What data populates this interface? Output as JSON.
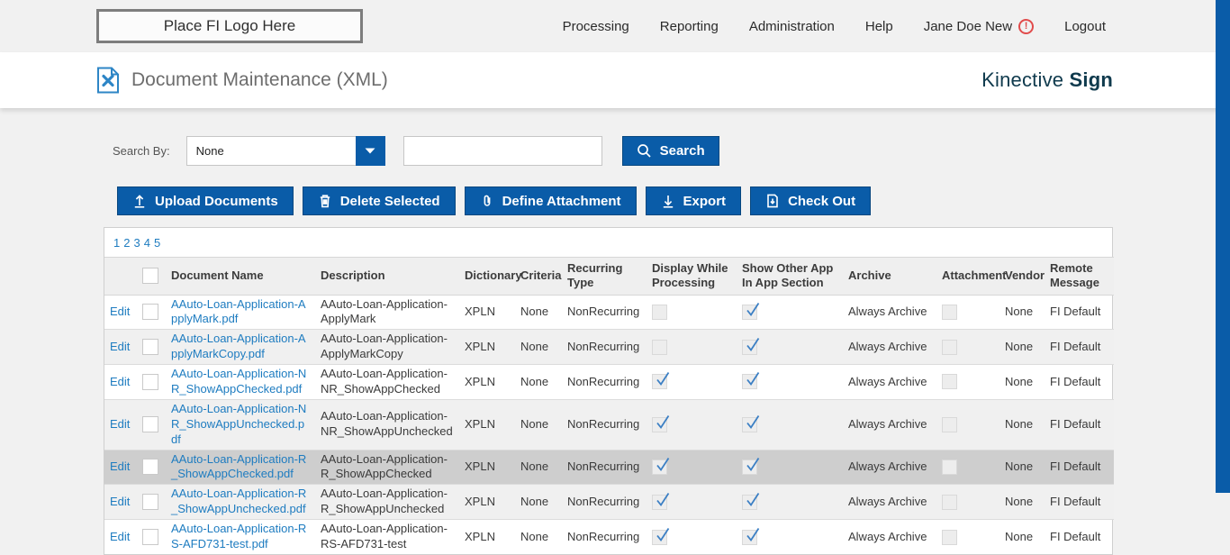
{
  "colors": {
    "accent_blue": "#0a5ca8",
    "link_blue": "#1e7cc0",
    "brand_navy": "#0f3a4d",
    "alert_red": "#e14b4b",
    "highlight_row": "#cecece",
    "alt_row": "#f0f0f0",
    "header_row": "#efefef"
  },
  "navbar": {
    "logo_text": "Place FI Logo Here",
    "items": [
      {
        "label": "Processing",
        "alert": false
      },
      {
        "label": "Reporting",
        "alert": false
      },
      {
        "label": "Administration",
        "alert": false
      },
      {
        "label": "Help",
        "alert": false
      },
      {
        "label": "Jane Doe New",
        "alert": true
      },
      {
        "label": "Logout",
        "alert": false
      }
    ],
    "alert_glyph": "!"
  },
  "page_header": {
    "title": "Document Maintenance (XML)",
    "brand_regular": "Kinective ",
    "brand_bold": "Sign"
  },
  "search": {
    "label": "Search By:",
    "dropdown_value": "None",
    "input_value": "",
    "button_label": "Search"
  },
  "toolbar": {
    "buttons": [
      {
        "label": "Upload Documents",
        "icon": "upload-icon"
      },
      {
        "label": "Delete Selected",
        "icon": "trash-icon"
      },
      {
        "label": "Define Attachment",
        "icon": "paperclip-icon"
      },
      {
        "label": "Export",
        "icon": "export-icon"
      },
      {
        "label": "Check Out",
        "icon": "checkout-icon"
      }
    ]
  },
  "pagination": {
    "pages": [
      "1",
      "2",
      "3",
      "4",
      "5"
    ]
  },
  "table": {
    "edit_label": "Edit",
    "headers": [
      "",
      "",
      "Document Name",
      "Description",
      "Dictionary",
      "Criteria",
      "Recurring Type",
      "Display While Processing",
      "Show Other App In App Section",
      "Archive",
      "Attachment",
      "Vendor",
      "Remote Message"
    ],
    "rows": [
      {
        "name": "AAuto-Loan-Application-ApplyMark.pdf",
        "description": "AAuto-Loan-Application-ApplyMark",
        "dictionary": "XPLN",
        "criteria": "None",
        "recurring_type": "NonRecurring",
        "display_while_processing": false,
        "show_other_app": true,
        "archive": "Always Archive",
        "attachment": false,
        "vendor": "None",
        "remote_message": "FI Default",
        "highlighted": false
      },
      {
        "name": "AAuto-Loan-Application-ApplyMarkCopy.pdf",
        "description": "AAuto-Loan-Application-ApplyMarkCopy",
        "dictionary": "XPLN",
        "criteria": "None",
        "recurring_type": "NonRecurring",
        "display_while_processing": false,
        "show_other_app": true,
        "archive": "Always Archive",
        "attachment": false,
        "vendor": "None",
        "remote_message": "FI Default",
        "highlighted": false
      },
      {
        "name": "AAuto-Loan-Application-NR_ShowAppChecked.pdf",
        "description": "AAuto-Loan-Application-NR_ShowAppChecked",
        "dictionary": "XPLN",
        "criteria": "None",
        "recurring_type": "NonRecurring",
        "display_while_processing": true,
        "show_other_app": true,
        "archive": "Always Archive",
        "attachment": false,
        "vendor": "None",
        "remote_message": "FI Default",
        "highlighted": false
      },
      {
        "name": "AAuto-Loan-Application-NR_ShowAppUnchecked.pdf",
        "description": "AAuto-Loan-Application-NR_ShowAppUnchecked",
        "dictionary": "XPLN",
        "criteria": "None",
        "recurring_type": "NonRecurring",
        "display_while_processing": true,
        "show_other_app": true,
        "archive": "Always Archive",
        "attachment": false,
        "vendor": "None",
        "remote_message": "FI Default",
        "highlighted": false
      },
      {
        "name": "AAuto-Loan-Application-R_ShowAppChecked.pdf",
        "description": "AAuto-Loan-Application-R_ShowAppChecked",
        "dictionary": "XPLN",
        "criteria": "None",
        "recurring_type": "NonRecurring",
        "display_while_processing": true,
        "show_other_app": true,
        "archive": "Always Archive",
        "attachment": false,
        "vendor": "None",
        "remote_message": "FI Default",
        "highlighted": true
      },
      {
        "name": "AAuto-Loan-Application-R_ShowAppUnchecked.pdf",
        "description": "AAuto-Loan-Application-R_ShowAppUnchecked",
        "dictionary": "XPLN",
        "criteria": "None",
        "recurring_type": "NonRecurring",
        "display_while_processing": true,
        "show_other_app": true,
        "archive": "Always Archive",
        "attachment": false,
        "vendor": "None",
        "remote_message": "FI Default",
        "highlighted": false
      },
      {
        "name": "AAuto-Loan-Application-RS-AFD731-test.pdf",
        "description": "AAuto-Loan-Application-RS-AFD731-test",
        "dictionary": "XPLN",
        "criteria": "None",
        "recurring_type": "NonRecurring",
        "display_while_processing": true,
        "show_other_app": true,
        "archive": "Always Archive",
        "attachment": false,
        "vendor": "None",
        "remote_message": "FI Default",
        "highlighted": false
      }
    ]
  }
}
